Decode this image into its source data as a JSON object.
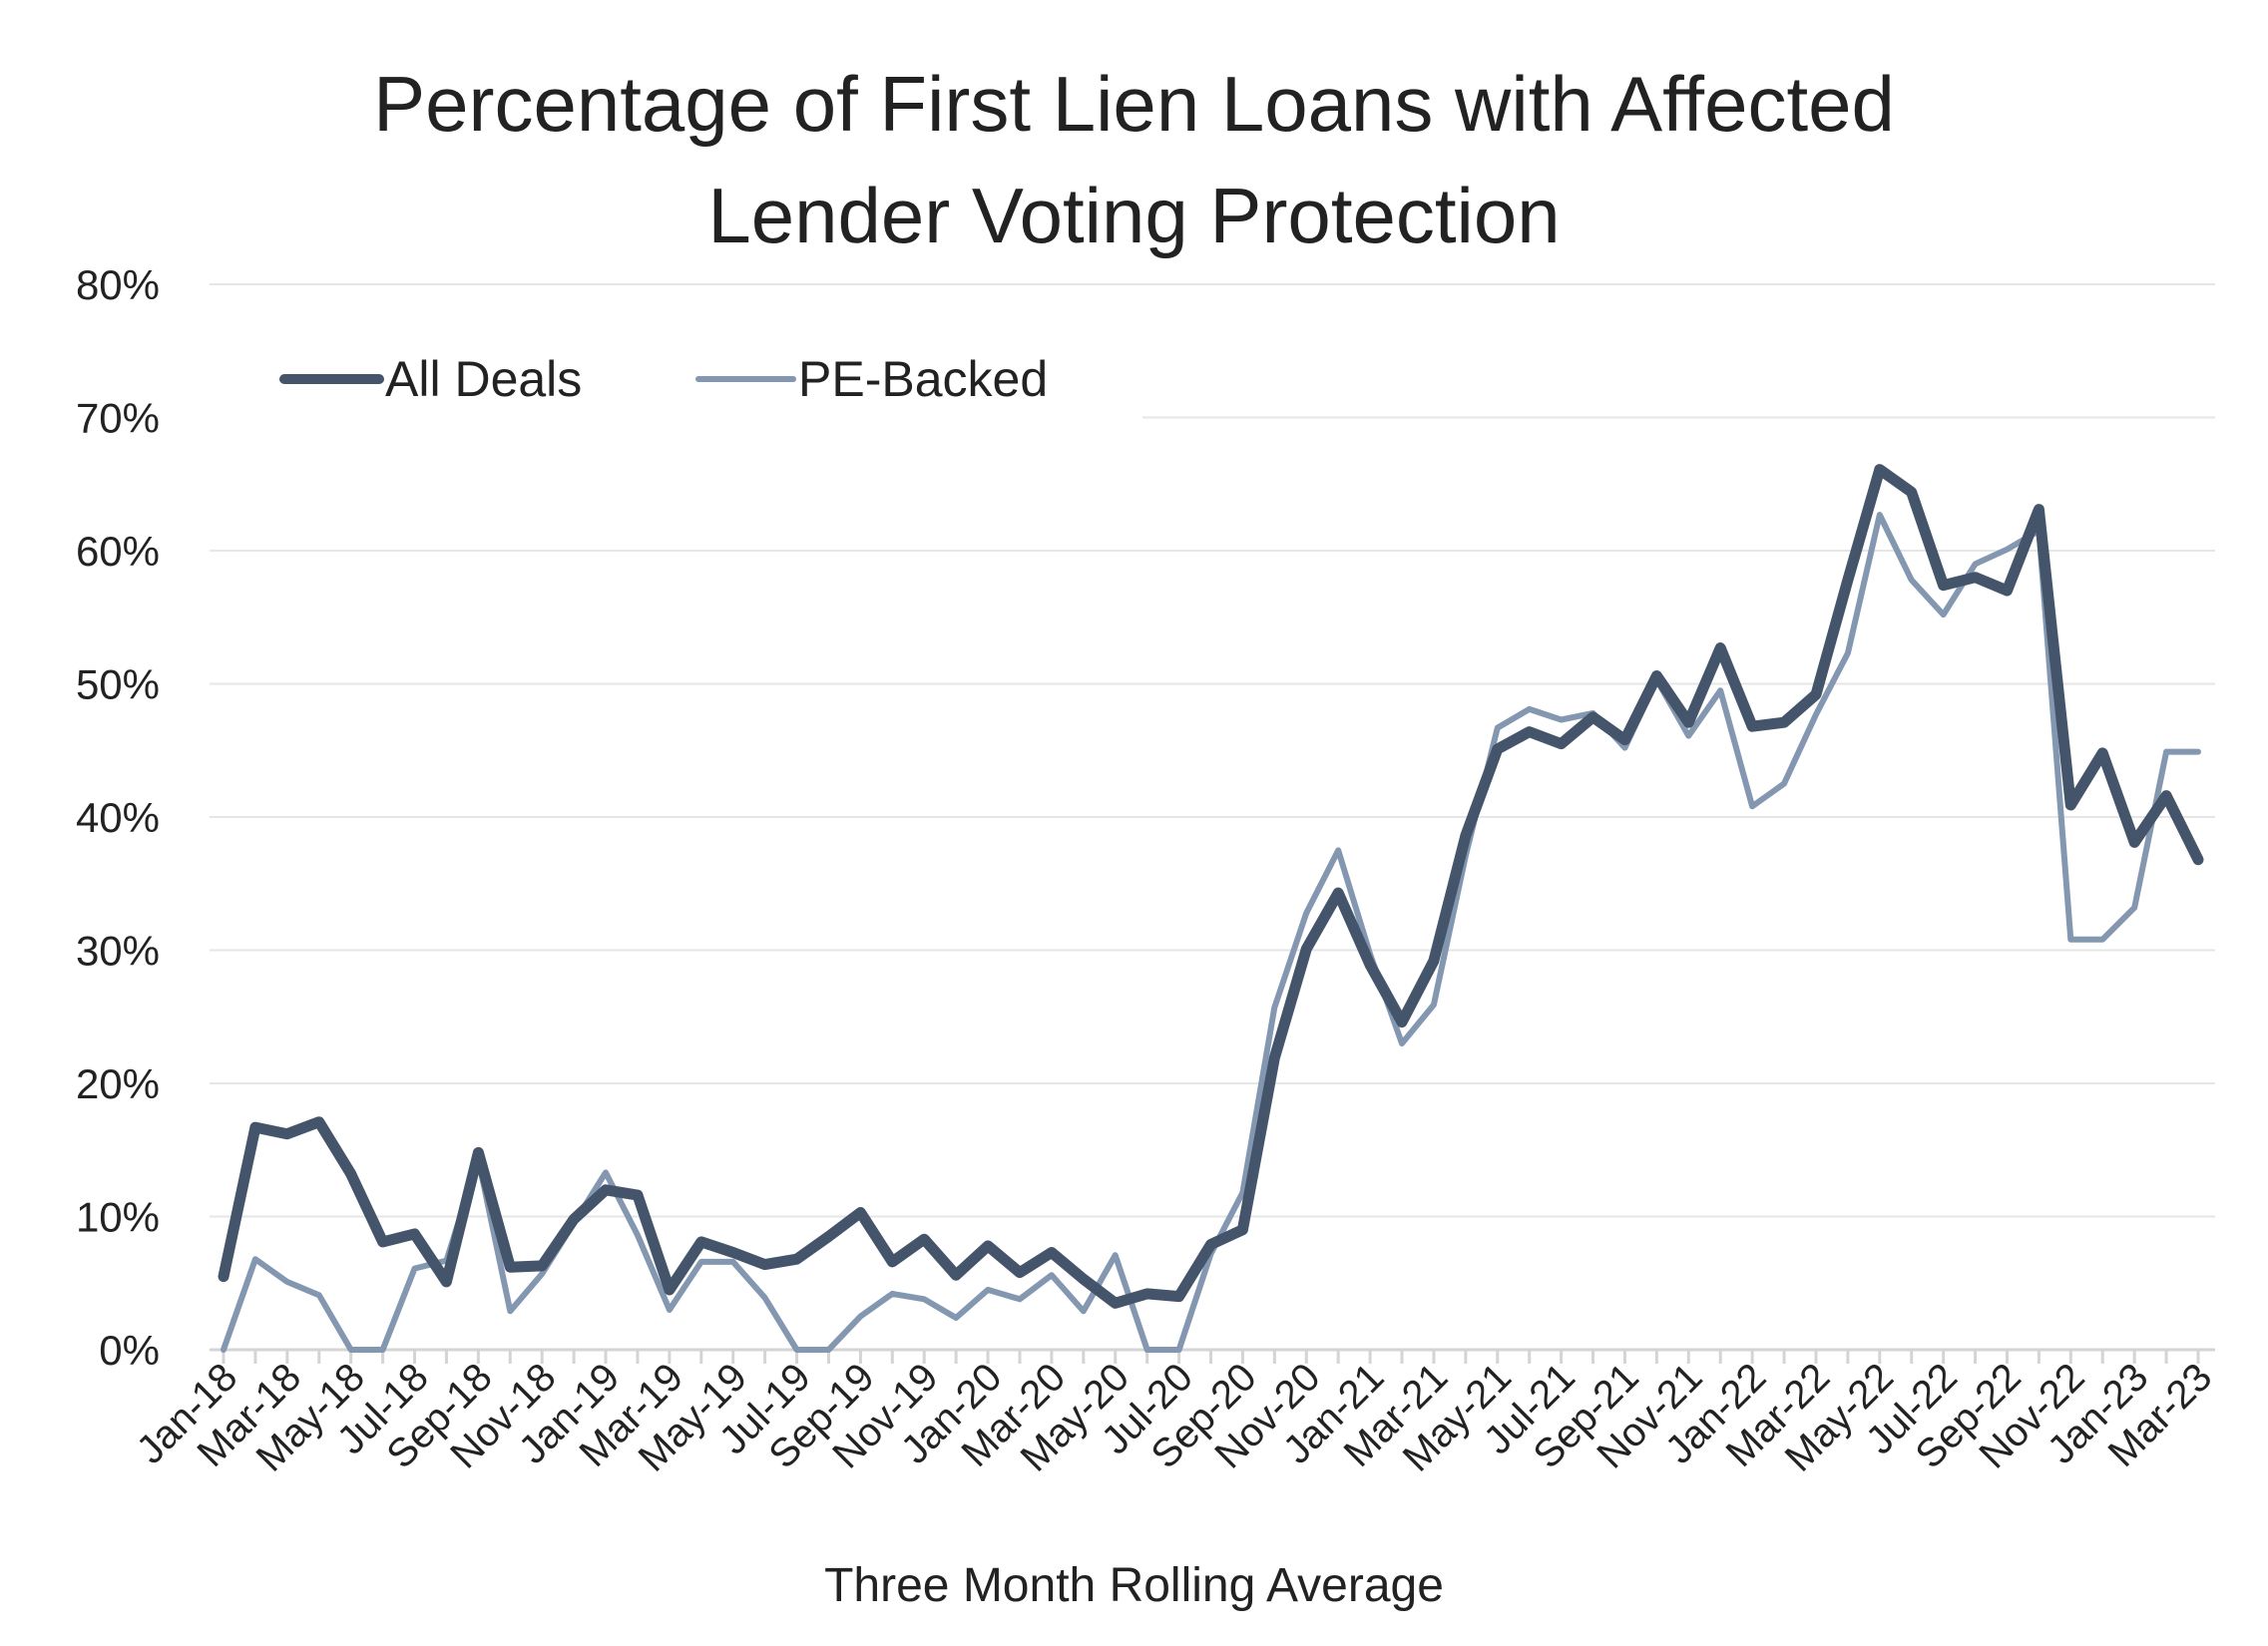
{
  "chart_data": {
    "type": "line",
    "title": [
      "Percentage of First Lien Loans with Affected",
      "Lender Voting Protection"
    ],
    "xlabel": "Three Month Rolling Average",
    "ylabel": "",
    "ylim": [
      0,
      80
    ],
    "y_ticks": [
      "0%",
      "10%",
      "20%",
      "30%",
      "40%",
      "50%",
      "60%",
      "70%",
      "80%"
    ],
    "grid": "horizontal",
    "legend_position": "top-left",
    "x_tick_labels": [
      "Jan-18",
      "Mar-18",
      "May-18",
      "Jul-18",
      "Sep-18",
      "Nov-18",
      "Jan-19",
      "Mar-19",
      "May-19",
      "Jul-19",
      "Sep-19",
      "Nov-19",
      "Jan-20",
      "Mar-20",
      "May-20",
      "Jul-20",
      "Sep-20",
      "Nov-20",
      "Jan-21",
      "Mar-21",
      "May-21",
      "Jul-21",
      "Sep-21",
      "Nov-21",
      "Jan-22",
      "Mar-22",
      "May-22",
      "Jul-22",
      "Sep-22",
      "Nov-22",
      "Jan-23",
      "Mar-23"
    ],
    "x": [
      "Jan-18",
      "Feb-18",
      "Mar-18",
      "Apr-18",
      "May-18",
      "Jun-18",
      "Jul-18",
      "Aug-18",
      "Sep-18",
      "Oct-18",
      "Nov-18",
      "Dec-18",
      "Jan-19",
      "Feb-19",
      "Mar-19",
      "Apr-19",
      "May-19",
      "Jun-19",
      "Jul-19",
      "Aug-19",
      "Sep-19",
      "Oct-19",
      "Nov-19",
      "Dec-19",
      "Jan-20",
      "Feb-20",
      "Mar-20",
      "Apr-20",
      "May-20",
      "Jun-20",
      "Jul-20",
      "Aug-20",
      "Sep-20",
      "Oct-20",
      "Nov-20",
      "Dec-20",
      "Jan-21",
      "Feb-21",
      "Mar-21",
      "Apr-21",
      "May-21",
      "Jun-21",
      "Jul-21",
      "Aug-21",
      "Sep-21",
      "Oct-21",
      "Nov-21",
      "Dec-21",
      "Jan-22",
      "Feb-22",
      "Mar-22",
      "Apr-22",
      "May-22",
      "Jun-22",
      "Jul-22",
      "Aug-22",
      "Sep-22",
      "Oct-22",
      "Nov-22",
      "Dec-22",
      "Jan-23",
      "Feb-23",
      "Mar-23"
    ],
    "series": [
      {
        "name": "All Deals",
        "color": "#44546a",
        "values": [
          5.5,
          16.7,
          16.2,
          17.1,
          13.2,
          8.1,
          8.7,
          5.1,
          14.8,
          6.2,
          6.3,
          9.8,
          12.0,
          11.6,
          4.5,
          8.1,
          7.3,
          6.4,
          6.8,
          8.5,
          10.3,
          6.6,
          8.3,
          5.6,
          7.8,
          5.8,
          7.3,
          5.3,
          3.5,
          4.2,
          4.0,
          7.9,
          9.0,
          21.9,
          30.1,
          34.3,
          28.9,
          24.6,
          29.2,
          38.6,
          45.1,
          46.4,
          45.5,
          47.5,
          45.8,
          50.6,
          47.1,
          52.7,
          46.8,
          47.1,
          49.2,
          57.8,
          66.1,
          64.4,
          57.4,
          58.0,
          57.0,
          63.1,
          40.9,
          44.8,
          38.1,
          41.6,
          36.8
        ]
      },
      {
        "name": "PE-Backed",
        "color": "#8497b0",
        "values": [
          0.0,
          6.8,
          5.1,
          4.1,
          0.0,
          0.0,
          6.1,
          6.7,
          14.3,
          2.9,
          5.7,
          9.5,
          13.3,
          8.6,
          3.0,
          6.6,
          6.6,
          3.9,
          0.0,
          0.0,
          2.5,
          4.2,
          3.8,
          2.4,
          4.5,
          3.8,
          5.6,
          2.9,
          7.1,
          0.0,
          0.0,
          7.2,
          11.8,
          25.7,
          32.8,
          37.5,
          29.7,
          23.0,
          25.9,
          37.1,
          46.7,
          48.1,
          47.3,
          47.8,
          45.2,
          50.3,
          46.1,
          49.5,
          40.8,
          42.5,
          47.7,
          52.3,
          62.7,
          57.8,
          55.2,
          59.0,
          60.1,
          61.5,
          30.8,
          30.8,
          33.2,
          44.9,
          44.9
        ]
      }
    ]
  }
}
